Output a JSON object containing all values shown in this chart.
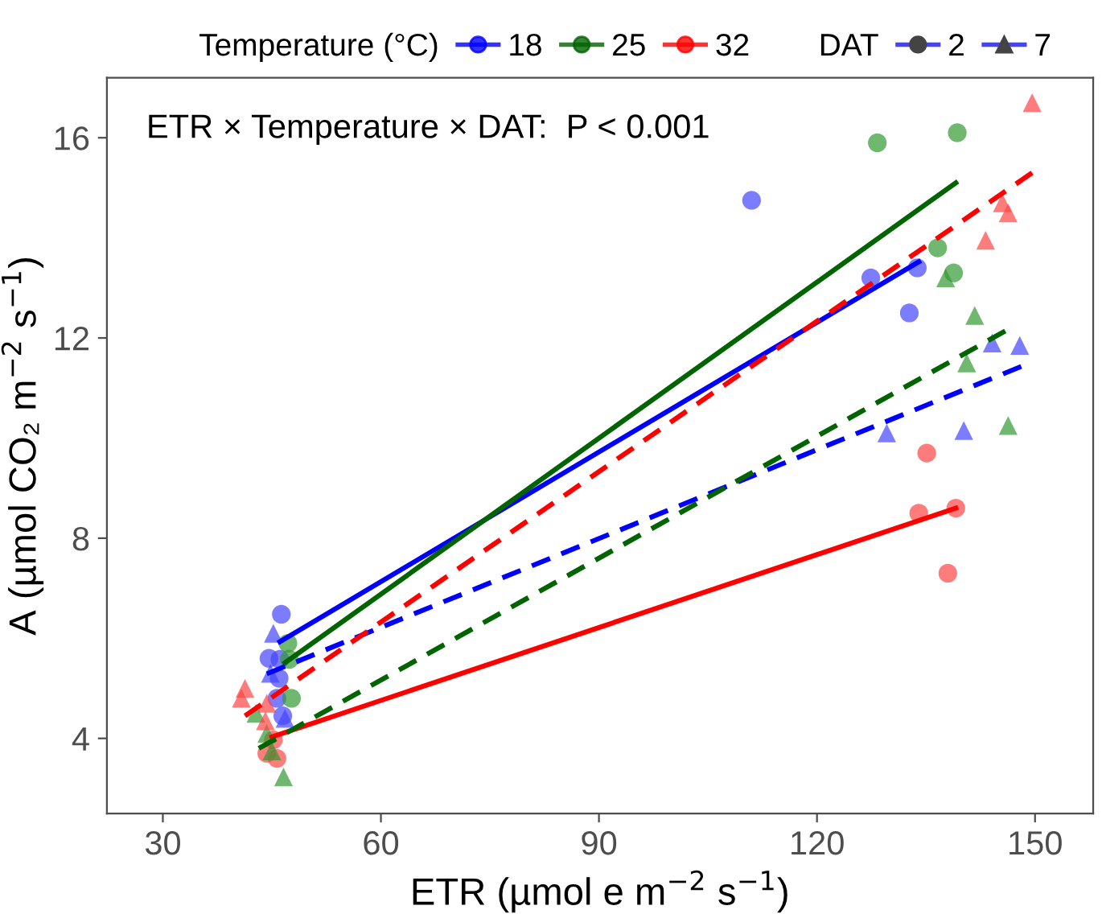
{
  "chart_data": {
    "type": "scatter",
    "xlabel": "ETR (µmol e m$^{−2}$ s$^{−1}$)",
    "ylabel": "A (µmol CO₂ m$^{−2}$ s$^{−1}$)",
    "legend_title": [
      "Temperature (°C)",
      "DAT"
    ],
    "legend": "top",
    "grid": false,
    "annotations": [
      "ETR × Temperature × DAT:  P < 0.001"
    ],
    "xlim": [
      22.3,
      158
    ],
    "ylim": [
      2.5,
      17.2
    ],
    "xticks": [
      30,
      60,
      90,
      120,
      150
    ],
    "yticks": [
      4,
      8,
      12,
      16
    ],
    "series": [
      {
        "name": "2",
        "marker": "circle",
        "color": "#4444ff",
        "x": [
          46.3,
          44.6,
          46.1,
          45.7,
          46.0,
          46.5,
          111.0,
          127.4,
          133.8,
          132.7
        ],
        "values": [
          6.48,
          5.6,
          5.58,
          4.8,
          5.2,
          4.45,
          14.75,
          13.2,
          13.4,
          12.5
        ]
      },
      {
        "marker": "circle",
        "color": "#339933",
        "x": [
          47.2,
          47.4,
          47.7,
          128.3,
          139.3,
          136.6,
          138.8
        ],
        "values": [
          5.9,
          5.58,
          4.8,
          15.9,
          16.1,
          13.8,
          13.3
        ]
      },
      {
        "marker": "circle",
        "color": "#ff4444",
        "x": [
          44.3,
          45.7,
          45.2,
          135.1,
          134.0,
          139.1,
          138.0
        ],
        "values": [
          3.7,
          3.6,
          3.97,
          9.7,
          8.5,
          8.6,
          7.3
        ]
      },
      {
        "name": "7",
        "marker": "triangle",
        "color": "#4444ff",
        "x": [
          45.2,
          44.8,
          46.8,
          144.1,
          147.9,
          129.6,
          140.2
        ],
        "values": [
          6.1,
          5.3,
          4.4,
          11.9,
          11.85,
          10.1,
          10.15
        ]
      },
      {
        "marker": "triangle",
        "color": "#339933",
        "x": [
          42.8,
          44.3,
          45.0,
          46.6,
          137.7,
          141.7,
          140.6,
          146.3
        ],
        "values": [
          4.5,
          4.1,
          3.75,
          3.23,
          13.2,
          12.45,
          11.5,
          10.25
        ]
      },
      {
        "marker": "triangle",
        "color": "#ff4444",
        "x": [
          41.3,
          40.8,
          44.3,
          44.1,
          149.6,
          145.5,
          146.3,
          143.2
        ],
        "values": [
          5.0,
          4.8,
          4.7,
          4.35,
          16.7,
          14.7,
          14.5,
          13.95
        ]
      },
      {
        "type": "line",
        "name": "18",
        "line_style": "solid",
        "color": "#0000ff",
        "x": [
          46.1,
          134.0
        ],
        "values": [
          5.93,
          13.52
        ]
      },
      {
        "type": "line",
        "name": "25",
        "line_style": "solid",
        "color": "#006400",
        "x": [
          46.8,
          139.1
        ],
        "values": [
          5.51,
          15.1
        ]
      },
      {
        "type": "line",
        "name": "32",
        "line_style": "solid",
        "color": "#ff0000",
        "x": [
          45.0,
          139.1
        ],
        "values": [
          4.03,
          8.6
        ]
      },
      {
        "type": "line",
        "line_style": "dashed",
        "color": "#0000ff",
        "x": [
          44.3,
          148.1
        ],
        "values": [
          5.29,
          11.43
        ]
      },
      {
        "type": "line",
        "line_style": "dashed",
        "color": "#006400",
        "x": [
          43.2,
          145.9
        ],
        "values": [
          3.8,
          12.14
        ]
      },
      {
        "type": "line",
        "line_style": "dashed",
        "color": "#ff0000",
        "x": [
          41.3,
          149.6
        ],
        "values": [
          4.45,
          15.3
        ]
      }
    ]
  }
}
